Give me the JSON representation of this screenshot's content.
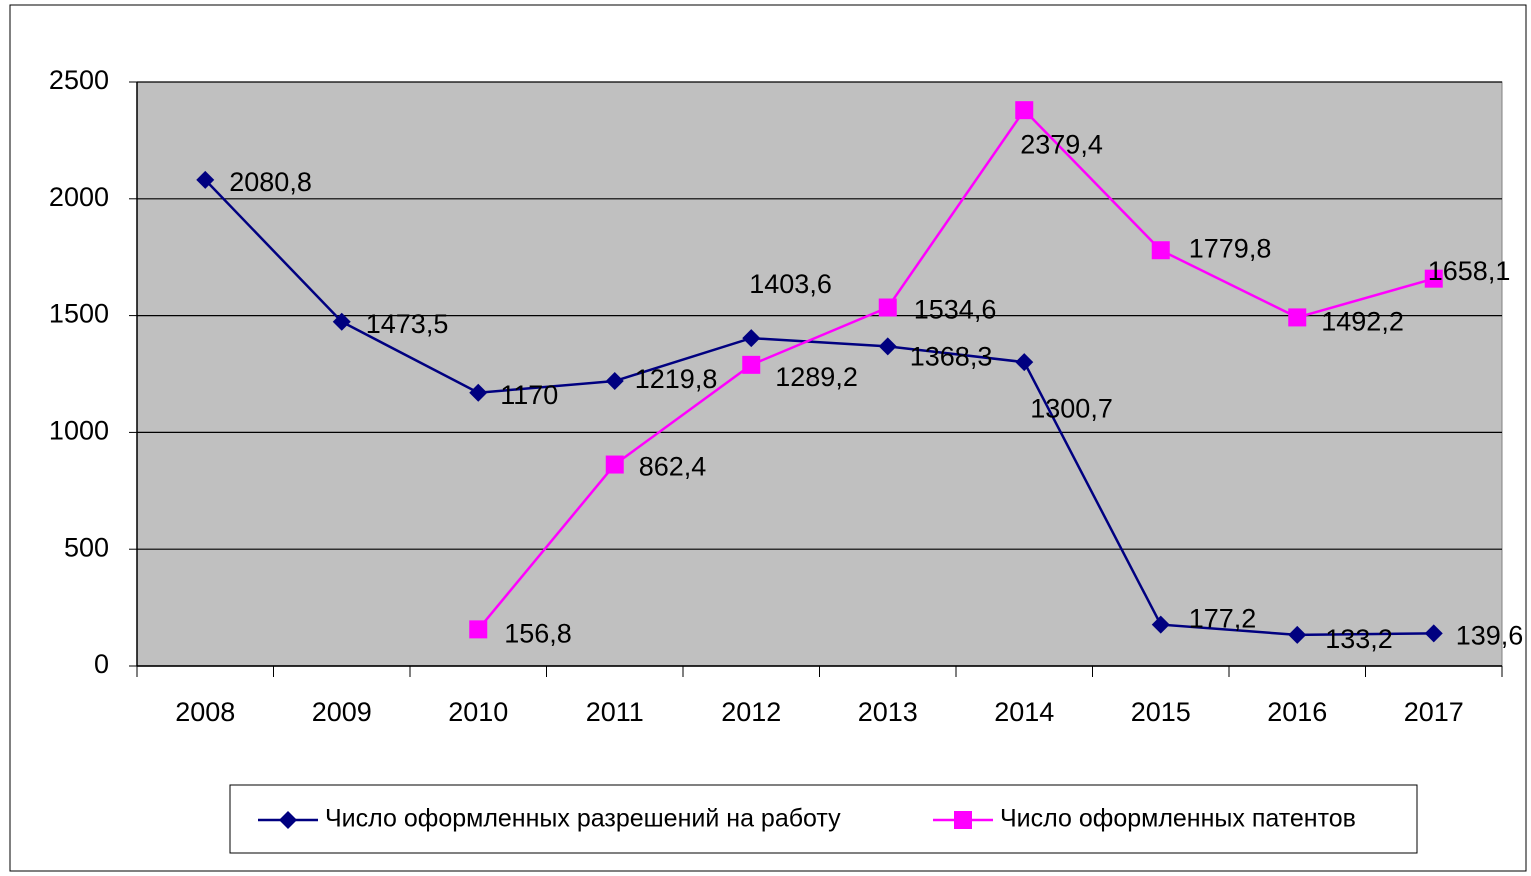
{
  "chart_data": {
    "type": "line",
    "categories": [
      "2008",
      "2009",
      "2010",
      "2011",
      "2012",
      "2013",
      "2014",
      "2015",
      "2016",
      "2017"
    ],
    "series": [
      {
        "name": "Число оформленных разрешений на работу",
        "color": "#000080",
        "marker": "diamond",
        "values": [
          2080.8,
          1473.5,
          1170,
          1219.8,
          1403.6,
          1368.3,
          1300.7,
          177.2,
          133.2,
          139.6
        ],
        "value_labels": [
          "2080,8",
          "1473,5",
          "1170",
          "1219,8",
          "1403,6",
          "1368,3",
          "1300,7",
          "177,2",
          "133,2",
          "139,6"
        ]
      },
      {
        "name": "Число оформленных патентов",
        "color": "#ff00ff",
        "marker": "square",
        "values": [
          null,
          null,
          156.8,
          862.4,
          1289.2,
          1534.6,
          2379.4,
          1779.8,
          1492.2,
          1658.1
        ],
        "value_labels": [
          null,
          null,
          "156,8",
          "862,4",
          "1289,2",
          "1534,6",
          "2379,4",
          "1779,8",
          "1492,2",
          "1658,1"
        ]
      }
    ],
    "ylim": [
      0,
      2500
    ],
    "yticks": [
      0,
      500,
      1000,
      1500,
      2000,
      2500
    ],
    "grid": true,
    "legend": "bottom"
  }
}
